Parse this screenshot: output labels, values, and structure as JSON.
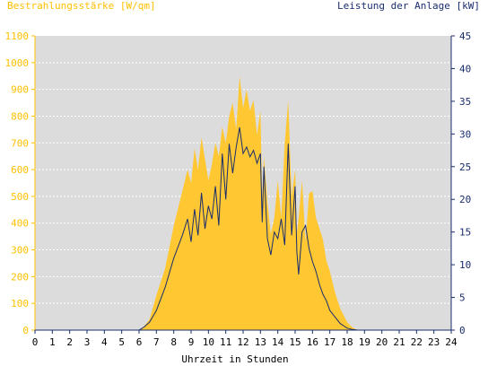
{
  "chart_data": {
    "type": "area",
    "title_left": "Bestrahlungsstärke [W/qm]",
    "title_right": "Leistung der Anlage [kW]",
    "xlabel": "Uhrzeit in Stunden",
    "xlim": [
      0,
      24
    ],
    "x_ticks": [
      "0",
      "1",
      "2",
      "3",
      "4",
      "5",
      "6",
      "7",
      "8",
      "9",
      "10",
      "11",
      "12",
      "13",
      "14",
      "15",
      "16",
      "17",
      "18",
      "19",
      "20",
      "21",
      "22",
      "23",
      "24"
    ],
    "left_axis": {
      "ylim": [
        0,
        1100
      ],
      "ticks": [
        "0",
        "100",
        "200",
        "300",
        "400",
        "500",
        "600",
        "700",
        "800",
        "900",
        "1000",
        "1100"
      ]
    },
    "right_axis": {
      "ylim": [
        0,
        45
      ],
      "ticks": [
        "0",
        "5",
        "10",
        "15",
        "20",
        "25",
        "30",
        "35",
        "40",
        "45"
      ]
    },
    "grid": true,
    "colors": {
      "irradiance": "#ffc832",
      "power": "#1a2d6e",
      "plot_bg": "#dcdcdc",
      "left_axis": "#ffc000",
      "right_axis": "#1a2d6e"
    },
    "series": [
      {
        "name": "Bestrahlungsstärke [W/qm]",
        "axis": "left",
        "x": [
          0,
          6.0,
          6.3,
          6.6,
          7.0,
          7.5,
          8.0,
          8.5,
          8.8,
          9.0,
          9.2,
          9.4,
          9.6,
          9.8,
          10.0,
          10.2,
          10.4,
          10.6,
          10.8,
          11.0,
          11.2,
          11.4,
          11.6,
          11.8,
          12.0,
          12.2,
          12.4,
          12.6,
          12.8,
          13.0,
          13.1,
          13.2,
          13.4,
          13.6,
          13.8,
          14.0,
          14.2,
          14.4,
          14.6,
          14.8,
          15.0,
          15.1,
          15.2,
          15.4,
          15.6,
          15.8,
          16.0,
          16.2,
          16.4,
          16.6,
          16.8,
          17.0,
          17.3,
          17.6,
          18.0,
          18.3,
          18.6,
          19.0,
          24
        ],
        "y": [
          0,
          0,
          15,
          40,
          130,
          230,
          390,
          520,
          600,
          550,
          680,
          600,
          720,
          640,
          560,
          620,
          700,
          650,
          760,
          700,
          800,
          850,
          750,
          950,
          830,
          900,
          820,
          860,
          730,
          820,
          500,
          650,
          480,
          360,
          420,
          560,
          420,
          700,
          860,
          500,
          600,
          360,
          420,
          560,
          330,
          510,
          520,
          420,
          380,
          340,
          260,
          220,
          140,
          80,
          30,
          10,
          0,
          0,
          0
        ]
      },
      {
        "name": "Leistung der Anlage [kW]",
        "axis": "right",
        "x": [
          0,
          6.0,
          6.3,
          6.6,
          7.0,
          7.5,
          8.0,
          8.5,
          8.8,
          9.0,
          9.2,
          9.4,
          9.6,
          9.8,
          10.0,
          10.2,
          10.4,
          10.6,
          10.8,
          11.0,
          11.2,
          11.4,
          11.6,
          11.8,
          12.0,
          12.2,
          12.4,
          12.6,
          12.8,
          13.0,
          13.1,
          13.2,
          13.4,
          13.6,
          13.8,
          14.0,
          14.2,
          14.4,
          14.6,
          14.8,
          15.0,
          15.1,
          15.2,
          15.4,
          15.6,
          15.8,
          16.0,
          16.2,
          16.4,
          16.6,
          16.8,
          17.0,
          17.3,
          17.6,
          18.0,
          18.3,
          18.6,
          19.0,
          24
        ],
        "y": [
          0,
          0,
          0.5,
          1.2,
          3.0,
          6.5,
          11.0,
          14.5,
          17.0,
          13.5,
          18.5,
          14.5,
          21.0,
          15.5,
          19.0,
          17.0,
          22.0,
          16.0,
          27.0,
          20.0,
          28.5,
          24.0,
          28.0,
          31.0,
          27.0,
          28.0,
          26.5,
          27.5,
          25.5,
          27.0,
          16.5,
          25.0,
          14.0,
          11.5,
          15.0,
          14.0,
          17.0,
          13.0,
          28.5,
          14.5,
          22.0,
          12.0,
          8.5,
          15.0,
          16.0,
          12.5,
          10.5,
          9.0,
          7.0,
          5.5,
          4.5,
          3.0,
          2.0,
          1.0,
          0.3,
          0.1,
          0,
          0,
          0
        ]
      }
    ]
  }
}
